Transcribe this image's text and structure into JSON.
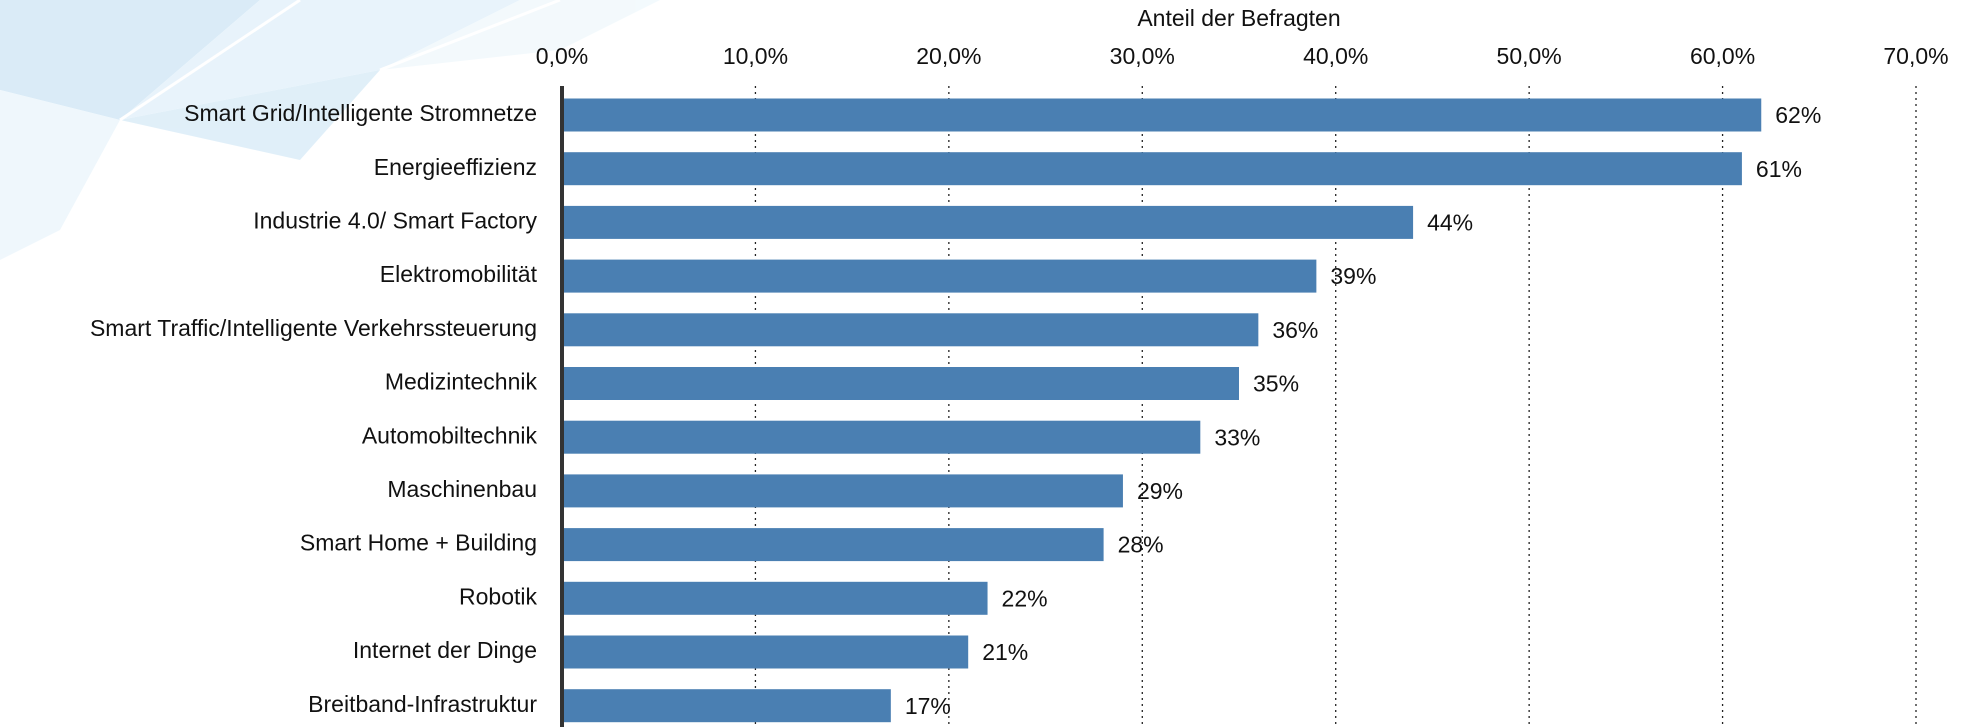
{
  "chart_data": {
    "type": "hbar",
    "x_label": "Anteil der Befragten",
    "categories": [
      "Smart Grid/Intelligente Stromnetze",
      "Energieeffizienz",
      "Industrie 4.0/ Smart Factory",
      "Elektromobilität",
      "Smart Traffic/Intelligente Verkehrssteuerung",
      "Medizintechnik",
      "Automobiltechnik",
      "Maschinenbau",
      "Smart Home + Building",
      "Robotik",
      "Internet der Dinge",
      "Breitband-Infrastruktur"
    ],
    "values": [
      62,
      61,
      44,
      39,
      36,
      35,
      33,
      29,
      28,
      22,
      21,
      17
    ],
    "value_labels": [
      "62%",
      "61%",
      "44%",
      "39%",
      "36%",
      "35%",
      "33%",
      "29%",
      "28%",
      "22%",
      "21%",
      "17%"
    ],
    "color": "#4a7fb2",
    "xlim": [
      0,
      70
    ],
    "xticks": [
      {
        "value": 0,
        "label": "0,0%"
      },
      {
        "value": 10,
        "label": "10,0%"
      },
      {
        "value": 20,
        "label": "20,0%"
      },
      {
        "value": 30,
        "label": "30,0%"
      },
      {
        "value": 40,
        "label": "40,0%"
      },
      {
        "value": 50,
        "label": "50,0%"
      },
      {
        "value": 60,
        "label": "60,0%"
      },
      {
        "value": 70,
        "label": "70,0%"
      }
    ],
    "grid": true
  }
}
